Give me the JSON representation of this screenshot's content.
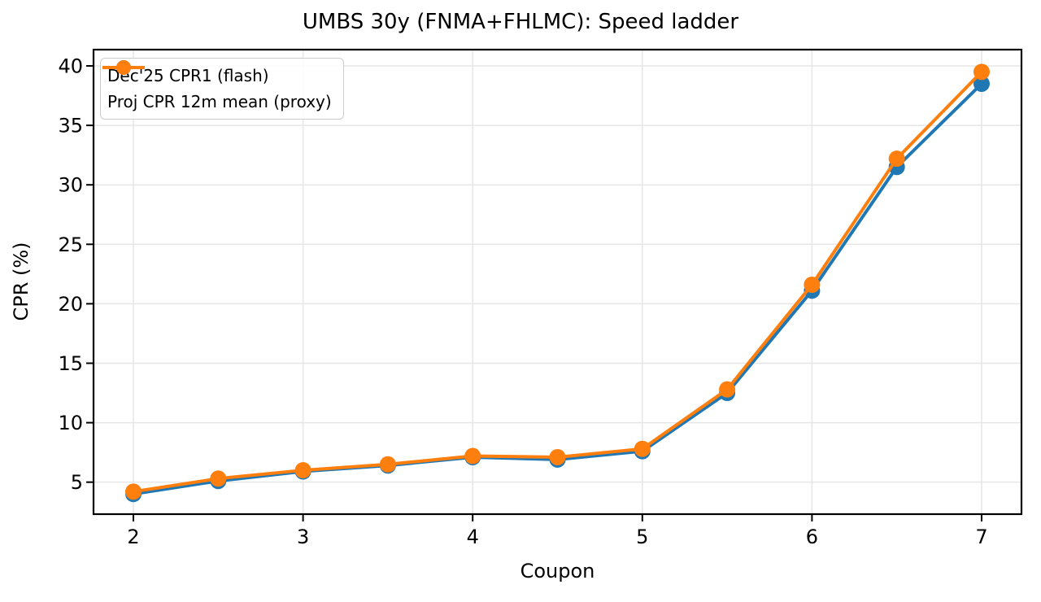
{
  "chart_data": {
    "type": "line",
    "title": "UMBS 30y (FNMA+FHLMC): Speed ladder",
    "xlabel": "Coupon",
    "ylabel": "CPR (%)",
    "x": [
      2,
      2.5,
      3,
      3.5,
      4,
      4.5,
      5,
      5.5,
      6,
      6.5,
      7
    ],
    "series": [
      {
        "name": "Dec'25 CPR1 (flash)",
        "color": "#1f77b4",
        "values": [
          4.0,
          5.1,
          5.9,
          6.4,
          7.1,
          6.9,
          7.6,
          12.5,
          21.1,
          31.5,
          38.5
        ]
      },
      {
        "name": "Proj CPR 12m mean (proxy)",
        "color": "#ff7f0e",
        "values": [
          4.2,
          5.3,
          6.0,
          6.5,
          7.2,
          7.1,
          7.8,
          12.8,
          21.6,
          32.2,
          39.5
        ]
      }
    ],
    "xticks": [
      2,
      3,
      4,
      5,
      6,
      7
    ],
    "yticks": [
      5,
      10,
      15,
      20,
      25,
      30,
      35,
      40
    ],
    "xlim": [
      1.765,
      7.235
    ],
    "ylim": [
      2.31,
      41.37
    ],
    "grid": true,
    "legend_position": "upper left",
    "marker": "o"
  },
  "styles": {
    "grid_color": "#e6e6e6",
    "spine_color": "#000000",
    "tick_color": "#000000",
    "legend_border": "#cccccc",
    "background": "#ffffff"
  }
}
